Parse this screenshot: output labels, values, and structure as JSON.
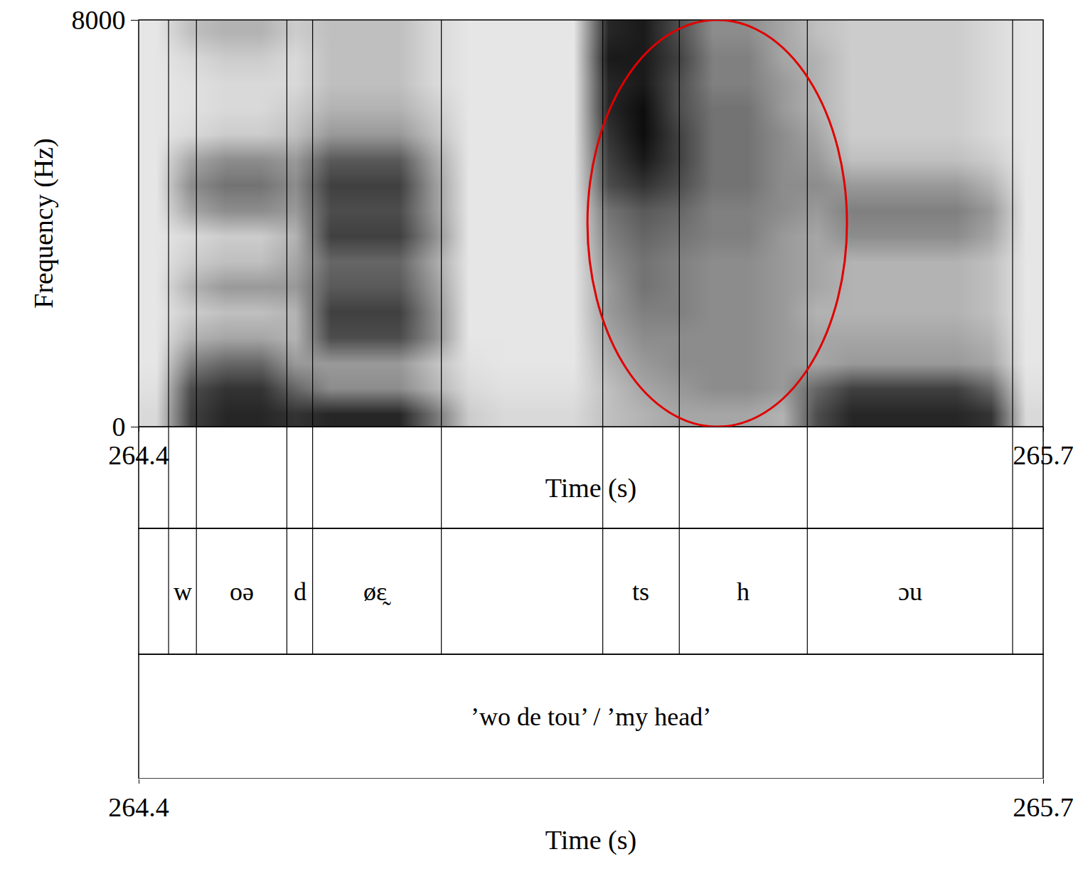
{
  "chart_data": {
    "type": "heatmap",
    "xlabel": "Time (s)",
    "ylabel": "Frequency (Hz)",
    "xlim": [
      264.4,
      265.7
    ],
    "xticks": [
      264.4,
      265.7
    ],
    "ylim": [
      0,
      8000
    ],
    "yticks": [
      0,
      8000
    ],
    "grid": false,
    "zlim": [
      0,
      100
    ],
    "time_edges": [
      264.4,
      264.45,
      264.5,
      264.55,
      264.6,
      264.65,
      264.7,
      264.75,
      264.8,
      264.85,
      264.9,
      264.95,
      265.0,
      265.05,
      265.1,
      265.15,
      265.2,
      265.25,
      265.3,
      265.35,
      265.4,
      265.45,
      265.5,
      265.55,
      265.6,
      265.65,
      265.7
    ],
    "freq_edges": [
      0,
      500,
      1000,
      1500,
      2000,
      2500,
      3000,
      3500,
      4000,
      4500,
      5000,
      5500,
      6000,
      6500,
      7000,
      7500,
      8000
    ],
    "cells": [
      [
        15,
        75,
        85,
        85,
        80,
        85,
        85,
        85,
        55,
        20,
        15,
        15,
        15,
        25,
        30,
        35,
        35,
        35,
        30,
        70,
        85,
        85,
        85,
        85,
        80,
        15
      ],
      [
        12,
        70,
        80,
        80,
        60,
        45,
        45,
        45,
        30,
        15,
        12,
        12,
        12,
        25,
        35,
        40,
        45,
        45,
        40,
        60,
        75,
        75,
        75,
        75,
        60,
        12
      ],
      [
        10,
        50,
        60,
        60,
        40,
        40,
        40,
        40,
        25,
        12,
        10,
        10,
        10,
        30,
        40,
        45,
        45,
        45,
        40,
        35,
        40,
        40,
        40,
        40,
        35,
        10
      ],
      [
        10,
        30,
        35,
        35,
        30,
        70,
        70,
        70,
        45,
        10,
        10,
        10,
        10,
        35,
        45,
        45,
        45,
        45,
        40,
        35,
        35,
        35,
        35,
        35,
        30,
        10
      ],
      [
        10,
        20,
        25,
        25,
        30,
        75,
        75,
        75,
        45,
        10,
        10,
        10,
        10,
        40,
        50,
        50,
        45,
        45,
        40,
        30,
        30,
        30,
        30,
        30,
        25,
        10
      ],
      [
        10,
        30,
        40,
        40,
        40,
        65,
        65,
        65,
        40,
        10,
        10,
        10,
        10,
        40,
        55,
        50,
        45,
        45,
        40,
        35,
        30,
        30,
        30,
        30,
        25,
        10
      ],
      [
        10,
        20,
        25,
        25,
        35,
        60,
        60,
        60,
        35,
        10,
        10,
        10,
        10,
        45,
        55,
        50,
        45,
        45,
        40,
        35,
        30,
        30,
        30,
        30,
        25,
        10
      ],
      [
        10,
        15,
        20,
        20,
        30,
        75,
        75,
        75,
        45,
        10,
        10,
        10,
        10,
        50,
        60,
        55,
        50,
        50,
        40,
        35,
        45,
        45,
        45,
        45,
        35,
        10
      ],
      [
        10,
        35,
        45,
        45,
        40,
        70,
        70,
        70,
        40,
        10,
        10,
        10,
        10,
        55,
        65,
        60,
        50,
        50,
        45,
        40,
        50,
        50,
        50,
        50,
        40,
        10
      ],
      [
        10,
        45,
        55,
        55,
        45,
        75,
        75,
        75,
        40,
        10,
        10,
        10,
        10,
        70,
        80,
        70,
        55,
        55,
        45,
        45,
        40,
        40,
        40,
        40,
        30,
        10
      ],
      [
        10,
        35,
        45,
        45,
        40,
        65,
        65,
        65,
        35,
        10,
        10,
        10,
        10,
        75,
        90,
        75,
        55,
        55,
        45,
        40,
        25,
        25,
        25,
        25,
        20,
        10
      ],
      [
        10,
        15,
        20,
        20,
        25,
        40,
        40,
        40,
        25,
        10,
        10,
        10,
        10,
        80,
        95,
        75,
        55,
        55,
        45,
        35,
        20,
        20,
        20,
        20,
        15,
        10
      ],
      [
        10,
        12,
        15,
        15,
        20,
        30,
        30,
        30,
        20,
        10,
        10,
        10,
        10,
        85,
        95,
        70,
        55,
        55,
        40,
        30,
        20,
        20,
        20,
        20,
        15,
        10
      ],
      [
        10,
        12,
        15,
        15,
        15,
        25,
        25,
        25,
        15,
        10,
        10,
        10,
        10,
        85,
        90,
        70,
        50,
        50,
        40,
        30,
        20,
        20,
        20,
        20,
        15,
        10
      ],
      [
        10,
        15,
        20,
        20,
        15,
        25,
        25,
        25,
        15,
        10,
        10,
        10,
        10,
        90,
        90,
        75,
        50,
        50,
        35,
        30,
        20,
        20,
        20,
        20,
        15,
        10
      ],
      [
        10,
        25,
        30,
        30,
        20,
        25,
        25,
        25,
        15,
        10,
        10,
        10,
        10,
        85,
        90,
        70,
        45,
        45,
        35,
        25,
        20,
        20,
        20,
        20,
        15,
        10
      ]
    ],
    "ellipse": {
      "xlim": [
        265.045,
        265.418
      ],
      "ylim": [
        0,
        8000
      ],
      "color": "#e00000"
    },
    "tiers": [
      {
        "boundaries": [
          264.443,
          264.483,
          264.613,
          264.65,
          264.835,
          265.067,
          265.177,
          265.361,
          265.656
        ],
        "labels": [
          null,
          "w",
          "oə",
          "d",
          "øɛ̰",
          null,
          "ts",
          "h",
          "ɔu",
          null
        ]
      },
      {
        "boundaries": [],
        "labels": [
          "’wo de tou’ / ’my head’"
        ]
      }
    ]
  }
}
